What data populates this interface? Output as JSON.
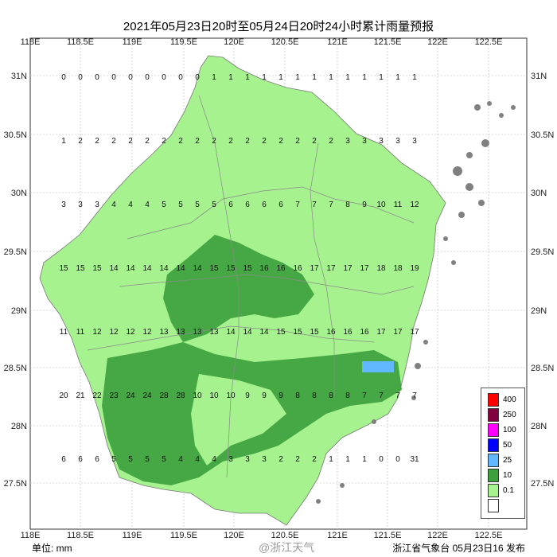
{
  "title": "2021年05月23日20时至05月24日20时24小时累计雨量预报",
  "x_ticks": [
    "118E",
    "118.5E",
    "119E",
    "119.5E",
    "120E",
    "120.5E",
    "121E",
    "121.5E",
    "122E",
    "122.5E"
  ],
  "y_ticks": [
    "31N",
    "30.5N",
    "30N",
    "29.5N",
    "29N",
    "28.5N",
    "28N",
    "27.5N"
  ],
  "legend": [
    {
      "label": "400",
      "color": "#ff0000"
    },
    {
      "label": "250",
      "color": "#800040"
    },
    {
      "label": "100",
      "color": "#ff00ff"
    },
    {
      "label": "50",
      "color": "#0000ff"
    },
    {
      "label": "25",
      "color": "#61b8ff"
    },
    {
      "label": "10",
      "color": "#3ca03c"
    },
    {
      "label": "0.1",
      "color": "#a6f28f"
    },
    {
      "label": "",
      "color": "#ffffff"
    }
  ],
  "colors": {
    "light_green": "#a6f28f",
    "dark_green": "#3ca03c",
    "blue": "#61b8ff",
    "island": "#808080",
    "border": "#9a9a9a"
  },
  "footer": {
    "unit": "单位: mm",
    "source": "浙江省气象台 05月23日16 发布"
  },
  "watermark": "@浙江天气",
  "values": [
    [
      "0",
      "0",
      "0",
      "0",
      "0",
      "0",
      "0",
      "0",
      "0",
      "1",
      "1",
      "1",
      "1",
      "1",
      "1",
      "1",
      "1",
      "1",
      "1",
      "1",
      "1",
      "1"
    ],
    [
      "1",
      "2",
      "2",
      "2",
      "2",
      "2",
      "2",
      "2",
      "2",
      "2",
      "2",
      "2",
      "2",
      "2",
      "2",
      "2",
      "2",
      "3",
      "3",
      "3",
      "3",
      "3"
    ],
    [
      "3",
      "3",
      "3",
      "4",
      "4",
      "4",
      "5",
      "5",
      "5",
      "5",
      "6",
      "6",
      "6",
      "6",
      "7",
      "7",
      "7",
      "8",
      "9",
      "10",
      "11",
      "12"
    ],
    [
      "15",
      "15",
      "15",
      "14",
      "14",
      "14",
      "14",
      "14",
      "14",
      "15",
      "15",
      "15",
      "16",
      "16",
      "16",
      "17",
      "17",
      "17",
      "17",
      "18",
      "18",
      "19"
    ],
    [
      "11",
      "11",
      "12",
      "12",
      "12",
      "12",
      "13",
      "13",
      "13",
      "13",
      "14",
      "14",
      "14",
      "15",
      "15",
      "15",
      "16",
      "16",
      "16",
      "17",
      "17",
      "17"
    ],
    [
      "20",
      "21",
      "22",
      "23",
      "24",
      "24",
      "28",
      "28",
      "10",
      "10",
      "10",
      "9",
      "9",
      "9",
      "8",
      "8",
      "8",
      "8",
      "7",
      "7",
      "7",
      "7"
    ],
    [
      "6",
      "6",
      "6",
      "5",
      "5",
      "5",
      "5",
      "4",
      "4",
      "4",
      "3",
      "3",
      "3",
      "2",
      "2",
      "2",
      "1",
      "1",
      "1",
      "0",
      "0",
      "31"
    ]
  ]
}
